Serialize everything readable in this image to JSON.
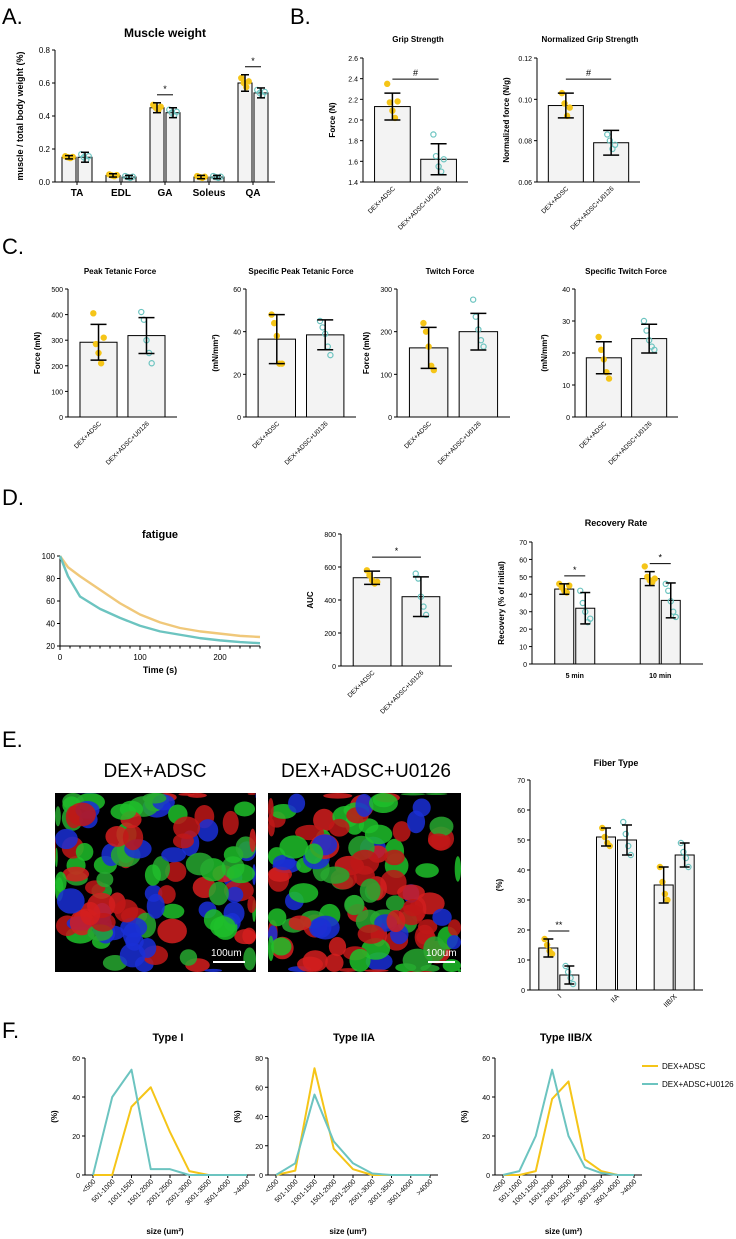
{
  "colors": {
    "yellow": "#f5c518",
    "teal": "#6cc4c0",
    "bar_fill": "#f3f3f3",
    "line_yellow": "#f0c87a",
    "line_teal": "#6cc4c0"
  },
  "panels": {
    "A": "A.",
    "B": "B.",
    "C": "C.",
    "D": "D.",
    "E": "E.",
    "F": "F."
  },
  "micrographs": [
    {
      "title": "DEX+ADSC",
      "scale_bar": "100um"
    },
    {
      "title": "DEX+ADSC+U0126",
      "scale_bar": "100um"
    }
  ],
  "chart_data": [
    {
      "id": "A",
      "type": "bar",
      "title": "Muscle weight",
      "xlabel": "",
      "ylabel": "muscle / total body weight (%)",
      "ylim": [
        0,
        0.8
      ],
      "yticks": [
        "0.0",
        "0.2",
        "0.4",
        "0.6",
        "0.8"
      ],
      "categories": [
        "TA",
        "EDL",
        "GA",
        "Soleus",
        "QA"
      ],
      "series": [
        {
          "values": [
            0.15,
            0.04,
            0.45,
            0.03,
            0.6
          ],
          "err": [
            0.01,
            0.01,
            0.03,
            0.01,
            0.05
          ]
        },
        {
          "values": [
            0.15,
            0.03,
            0.42,
            0.03,
            0.54
          ],
          "err": [
            0.03,
            0.01,
            0.03,
            0.01,
            0.03
          ]
        }
      ],
      "annotations": [
        {
          "category": 2,
          "text": "*"
        },
        {
          "category": 4,
          "text": "*"
        }
      ]
    },
    {
      "id": "B1",
      "type": "bar",
      "title": "Grip Strength",
      "ylabel": "Force (N)",
      "ylim": [
        1.4,
        2.6
      ],
      "yticks": [
        "1.4",
        "1.6",
        "1.8",
        "2.0",
        "2.2",
        "2.4",
        "2.6"
      ],
      "categories": [
        "DEX+ADSC",
        "DEX+ADSC+U0126"
      ],
      "values": [
        2.13,
        1.62
      ],
      "err": [
        0.13,
        0.15
      ],
      "points": [
        [
          2.35,
          2.17,
          2.09,
          2.02,
          2.18
        ],
        [
          1.86,
          1.65,
          1.55,
          1.5,
          1.62
        ]
      ],
      "annotation": "#"
    },
    {
      "id": "B2",
      "type": "bar",
      "title": "Normalized Grip Strength",
      "ylabel": "Normalized force (N/g)",
      "ylim": [
        0.06,
        0.12
      ],
      "yticks": [
        "0.06",
        "0.08",
        "0.10",
        "0.12"
      ],
      "categories": [
        "DEX+ADSC",
        "DEX+ADSC+U0126"
      ],
      "values": [
        0.097,
        0.079
      ],
      "err": [
        0.006,
        0.006
      ],
      "points": [
        [
          0.103,
          0.098,
          0.092,
          0.096
        ],
        [
          0.083,
          0.08,
          0.076,
          0.078
        ]
      ],
      "annotation": "#"
    },
    {
      "id": "C1",
      "type": "bar",
      "title": "Peak Tetanic Force",
      "ylabel": "Force (mN)",
      "ylim": [
        0,
        500
      ],
      "yticks": [
        "0",
        "100",
        "200",
        "300",
        "400",
        "500"
      ],
      "categories": [
        "DEX+ADSC",
        "DEX+ADSC+U0126"
      ],
      "values": [
        292,
        318
      ],
      "err": [
        70,
        70
      ],
      "points": [
        [
          405,
          285,
          250,
          210,
          310
        ],
        [
          410,
          380,
          300,
          250,
          210
        ]
      ]
    },
    {
      "id": "C2",
      "type": "bar",
      "title": "Specific Peak Tetanic Force",
      "ylabel": "(mN/mm²)",
      "ylim": [
        0,
        60
      ],
      "yticks": [
        "0",
        "20",
        "40",
        "60"
      ],
      "categories": [
        "DEX+ADSC",
        "DEX+ADSC+U0126"
      ],
      "values": [
        36.5,
        38.5
      ],
      "err": [
        11.5,
        7
      ],
      "points": [
        [
          48,
          44,
          38,
          25,
          25
        ],
        [
          45,
          42,
          39,
          33,
          29
        ]
      ]
    },
    {
      "id": "C3",
      "type": "bar",
      "title": "Twitch Force",
      "ylabel": "Force (mN)",
      "ylim": [
        0,
        300
      ],
      "yticks": [
        "0",
        "100",
        "200",
        "300"
      ],
      "categories": [
        "DEX+ADSC",
        "DEX+ADSC+U0126"
      ],
      "values": [
        162,
        200
      ],
      "err": [
        48,
        43
      ],
      "points": [
        [
          220,
          200,
          165,
          120,
          110
        ],
        [
          275,
          235,
          205,
          180,
          165
        ]
      ]
    },
    {
      "id": "C4",
      "type": "bar",
      "title": "Specific Twitch Force",
      "ylabel": "(mN/mm²)",
      "ylim": [
        0,
        40
      ],
      "yticks": [
        "0",
        "10",
        "20",
        "30",
        "40"
      ],
      "categories": [
        "DEX+ADSC",
        "DEX+ADSC+U0126"
      ],
      "values": [
        18.5,
        24.5
      ],
      "err": [
        5,
        4.5
      ],
      "points": [
        [
          25,
          21,
          18,
          14,
          12
        ],
        [
          30,
          27,
          24,
          22,
          21
        ]
      ]
    },
    {
      "id": "D1",
      "type": "line",
      "title": "fatigue",
      "xlabel": "Time (s)",
      "ylabel": "",
      "xlim": [
        0,
        250
      ],
      "ylim": [
        20,
        100
      ],
      "xticks": [
        "0",
        "100",
        "200"
      ],
      "yticks": [
        "20",
        "40",
        "60",
        "80",
        "100"
      ],
      "x": [
        0,
        10,
        25,
        50,
        75,
        100,
        125,
        150,
        175,
        200,
        225,
        250
      ],
      "series": [
        {
          "values": [
            100,
            90,
            82,
            70,
            58,
            48,
            41,
            36,
            33,
            31,
            29,
            28
          ]
        },
        {
          "values": [
            100,
            82,
            64,
            53,
            45,
            38,
            33,
            30,
            27,
            25,
            23.5,
            22.5
          ]
        }
      ]
    },
    {
      "id": "D2",
      "type": "bar",
      "title": "",
      "ylabel": "AUC",
      "ylim": [
        0,
        800
      ],
      "yticks": [
        "0",
        "200",
        "400",
        "600",
        "800"
      ],
      "categories": [
        "DEX+ADSC",
        "DEX+ADSC+U0126"
      ],
      "values": [
        535,
        420
      ],
      "err": [
        40,
        120
      ],
      "points": [
        [
          580,
          550,
          520,
          500,
          510
        ],
        [
          560,
          530,
          420,
          360,
          310
        ]
      ],
      "annotation": "*"
    },
    {
      "id": "D3",
      "type": "bar",
      "title": "Recovery Rate",
      "ylabel": "Recovery (% of initial)",
      "ylim": [
        0,
        70
      ],
      "yticks": [
        "0",
        "10",
        "20",
        "30",
        "40",
        "50",
        "60",
        "70"
      ],
      "categories": [
        "5 min",
        "10 min"
      ],
      "series": [
        {
          "values": [
            43,
            49
          ],
          "err": [
            3,
            4
          ],
          "points": [
            [
              46,
              44,
              42,
              41,
              45
            ],
            [
              56,
              50,
              48,
              47,
              49
            ]
          ]
        },
        {
          "values": [
            32,
            36.5
          ],
          "err": [
            9,
            10
          ],
          "points": [
            [
              42,
              35,
              30,
              24,
              26
            ],
            [
              46,
              42,
              36,
              30,
              27
            ]
          ]
        }
      ],
      "annotations": [
        {
          "category": 0,
          "text": "*"
        },
        {
          "category": 1,
          "text": "*"
        }
      ]
    },
    {
      "id": "E",
      "type": "bar",
      "title": "Fiber Type",
      "ylabel": "(%)",
      "ylim": [
        0,
        70
      ],
      "yticks": [
        "0",
        "10",
        "20",
        "30",
        "40",
        "50",
        "60",
        "70"
      ],
      "categories": [
        "I",
        "IIA",
        "IIB/X"
      ],
      "series": [
        {
          "values": [
            14,
            51,
            35
          ],
          "err": [
            3,
            3,
            6
          ],
          "points": [
            [
              17,
              15,
              13,
              12
            ],
            [
              54,
              51,
              49,
              48
            ],
            [
              41,
              36,
              32,
              30
            ]
          ]
        },
        {
          "values": [
            5,
            50,
            45
          ],
          "err": [
            3,
            5,
            4
          ],
          "points": [
            [
              8,
              6,
              4,
              2
            ],
            [
              56,
              52,
              48,
              45
            ],
            [
              49,
              46,
              44,
              41
            ]
          ]
        }
      ],
      "annotations": [
        {
          "category": 0,
          "text": "**"
        }
      ]
    },
    {
      "id": "F1",
      "type": "line",
      "title": "Type I",
      "xlabel": "size (um²)",
      "ylabel": "(%)",
      "ylim": [
        0,
        60
      ],
      "yticks": [
        "0",
        "20",
        "40",
        "60"
      ],
      "categories": [
        "<500",
        "501-1000",
        "1001-1500",
        "1501-2000",
        "2001-2500",
        "2501-3000",
        "3001-3500",
        "3501-4000",
        ">4000"
      ],
      "series": [
        {
          "name": "DEX+ADSC",
          "values": [
            0,
            0,
            35,
            45,
            22,
            2,
            0,
            0,
            0
          ]
        },
        {
          "name": "DEX+ADSC+U0126",
          "values": [
            0,
            40,
            54,
            3,
            3,
            0,
            0,
            0,
            0
          ]
        }
      ]
    },
    {
      "id": "F2",
      "type": "line",
      "title": "Type IIA",
      "xlabel": "size (um²)",
      "ylabel": "(%)",
      "ylim": [
        0,
        80
      ],
      "yticks": [
        "0",
        "20",
        "40",
        "60",
        "80"
      ],
      "categories": [
        "<500",
        "501-1000",
        "1001-1500",
        "1501-2000",
        "2001-2500",
        "2501-3000",
        "3001-3500",
        "3501-4000",
        ">4000"
      ],
      "series": [
        {
          "name": "DEX+ADSC",
          "values": [
            0,
            3,
            73,
            18,
            4,
            0,
            0,
            0,
            0
          ]
        },
        {
          "name": "DEX+ADSC+U0126",
          "values": [
            0,
            8,
            55,
            23,
            8,
            1,
            0,
            0,
            0
          ]
        }
      ]
    },
    {
      "id": "F3",
      "type": "line",
      "title": "Type IIB/X",
      "xlabel": "size (um²)",
      "ylabel": "(%)",
      "ylim": [
        0,
        60
      ],
      "yticks": [
        "0",
        "20",
        "40",
        "60"
      ],
      "categories": [
        "<500",
        "501-1000",
        "1001-1500",
        "1501-2000",
        "2001-2500",
        "2501-3000",
        "3001-3500",
        "3501-4000",
        ">4000"
      ],
      "series": [
        {
          "name": "DEX+ADSC",
          "values": [
            0,
            0,
            2,
            39,
            48,
            8,
            2,
            0,
            0
          ]
        },
        {
          "name": "DEX+ADSC+U0126",
          "values": [
            0,
            2,
            20,
            54,
            20,
            4,
            1,
            0,
            0
          ]
        }
      ],
      "legend": [
        "DEX+ADSC",
        "DEX+ADSC+U0126"
      ]
    }
  ]
}
